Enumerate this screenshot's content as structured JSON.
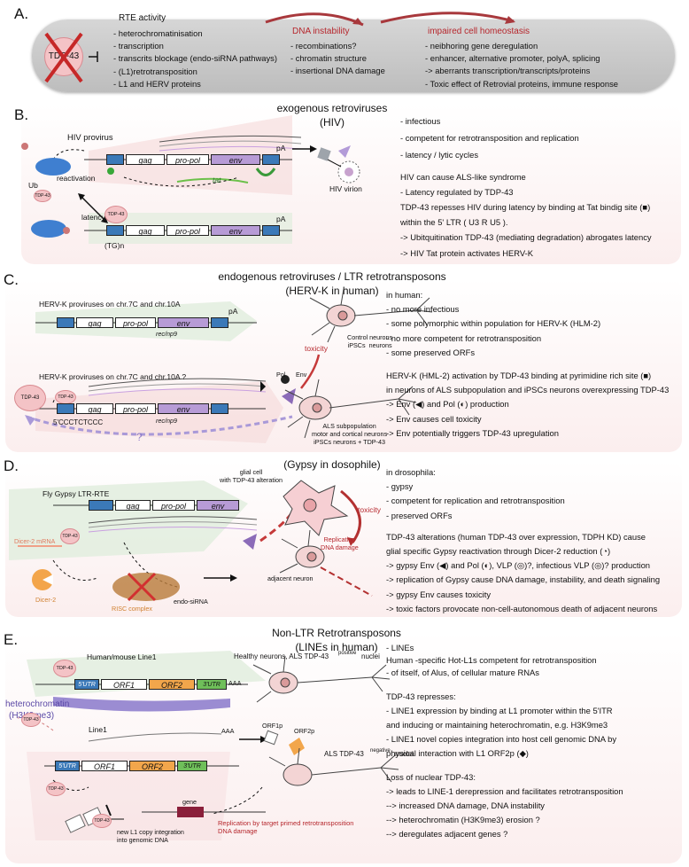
{
  "panelA": {
    "label": "A.",
    "tdp": "TDP-43",
    "rte_title": "RTE activity",
    "rte_items": [
      "- heterochromatinisation",
      "- transcription",
      "- transcrits blockage (endo-siRNA pathways)",
      "- (L1)retrotransposition",
      "- L1 and HERV proteins"
    ],
    "dna_title": "DNA instability",
    "dna_items": [
      "- recombinations?",
      "- chromatin structure",
      "- insertional DNA damage"
    ],
    "cell_title": "impaired cell homeostasis",
    "cell_items": [
      "- neibhoring gene deregulation",
      "- enhancer, alternative promoter, polyA, splicing",
      "-> aberrants transcription/transcripts/proteins",
      "- Toxic effect of Retrovial proteins, immune  response"
    ]
  },
  "panelB": {
    "label": "B.",
    "title1": "exogenous retroviruses",
    "title2": "(HIV)",
    "provirus": "HIV provirus",
    "reactivation": "reactivation",
    "latency": "latency",
    "ub": "Ub",
    "tdp": "TDP-43",
    "tgn": "(TG)n",
    "virion": "HIV virion",
    "tat": "tat",
    "gag": "gag",
    "pol": "pro-pol",
    "env": "env",
    "pa": "pA",
    "desc": [
      "- infectious",
      "- competent for retrotransposition and replication",
      "- latency / lytic cycles",
      "",
      "HIV can cause ALS-like syndrome",
      "- Latency regulated by TDP-43",
      "TDP-43 repesses HIV during latency by binding at Tat bindig site (■)",
      "within the 5' LTR ( U3 R U5 ).",
      "-> Ubitquitination TDP-43 (mediating degradation) abrogates latency",
      "-> HIV Tat protein activates HERV-K"
    ]
  },
  "panelC": {
    "label": "C.",
    "title1": "endogenous retroviruses / LTR retrotransposons",
    "title2": "(HERV-K in human)",
    "prov1": "HERV-K proviruses on chr.7C and chr.10A",
    "prov2": "HERV-K proviruses on chr.7C and chr.10A ?",
    "rec": "rec/np9",
    "seq": "5'CCCTCTCCC",
    "control": "Control neurons\niPSCs  neurons",
    "als": "ALS subpopulation\nmotor and cortical neurons\niPSCs neurons + TDP-43",
    "pol": "Pol",
    "envp": "Env",
    "toxicity": "toxicity",
    "q": "?",
    "desc": [
      "in human:",
      "- no more infectious",
      "- some polymorphic within population for HERV-K (HLM-2)",
      "- no more competent for retrotransposition",
      "- some preserved ORFs",
      "",
      "HERV-K (HML-2) activation by TDP-43 binding at pyrimidine rich site (■)",
      "in neurons of ALS subpopulation and iPSCs neurons overexpressing TDP-43",
      "-> Env (◀) and Pol (◐) production",
      "-> Env causes cell toxicity",
      "-> Env potentially triggers TDP-43 upregulation"
    ]
  },
  "panelD": {
    "label": "D.",
    "title": "(Gypsy in dosophile)",
    "fly": "Fly Gypsy  LTR-RTE",
    "glial": "glial cell\nwith TDP-43 alteration",
    "dicer_mrna": "Dicer-2 mRNA",
    "dicer": "Dicer-2",
    "risc": "RISC complex",
    "endo": "endo-siRNA",
    "adjacent": "adjacent neuron",
    "replication": "Replication\nDNA damage",
    "toxicity": "toxicity",
    "desc": [
      "in drosophila:",
      "- gypsy",
      "- competent for replication and retrotransposition",
      "- preserved ORFs",
      "",
      "TDP-43 alterations (human TDP-43 over expression, TDPH KD) cause",
      "glial specific Gypsy reactivation through Dicer-2 reduction (◔)",
      "-> gypsy Env (◀) and Pol (◐), VLP (◎)?, infectious VLP (◎)? production",
      "-> replication of Gypsy cause DNA damage, instability, and death signaling",
      "-> gypsy Env causes toxicity",
      "-> toxic factors provocate non-cell-autonomous death of adjacent neurons"
    ]
  },
  "panelE": {
    "label": "E.",
    "title1": "Non-LTR Retrotransposons",
    "title2": "(LINEs in human)",
    "line1_title": "Human/mouse Line1",
    "healthy": "Healthy neurons, ALS TDP-43",
    "positive": "positive",
    "nuclei": "nuclei",
    "hetero1": "heterochromatin",
    "hetero2": "(H3K9me3)",
    "line1": "Line1",
    "utr5": "5'UTR",
    "orf1": "ORF1",
    "orf2": "ORF2",
    "utr3": "3'UTR",
    "aaa": "AAA",
    "orf1p": "ORF1p",
    "orf2p": "ORF2p",
    "als_neg": "ALS TDP-43",
    "negative": "negative",
    "gene": "gene",
    "newcopy": "new L1 copy integration\ninto genomic DNA",
    "replication": "Replication by target primed retrotransposition\nDNA damage",
    "desc": [
      "- LINEs",
      "Human -specific Hot-L1s competent for retrotransposition",
      "- of itself, of Alus, of cellular mature RNAs",
      "",
      "TDP-43 represses:",
      "- LINE1 expression by binding at L1 promoter within the 5'ITR",
      "and inducing or maintaining heterochromatin, e.g. H3K9me3",
      "- LINE1 novel copies integration into host cell genomic DNA by",
      "physical interaction with L1 ORF2p (◆)",
      "",
      "Loss of nuclear TDP-43:",
      "-> leads to LINE-1 derepression and facilitates retrotransposition",
      "--> increased DNA damage, DNA instability",
      "--> heterochromatin (H3K9me3) erosion ?",
      "--> deregulates adjacent genes ?"
    ]
  },
  "colors": {
    "tdp": "#f4c3c6",
    "ltr": "#3b79b8",
    "env": "#b79bd6",
    "orange": "#f2a64b",
    "red": "#b6262c"
  }
}
